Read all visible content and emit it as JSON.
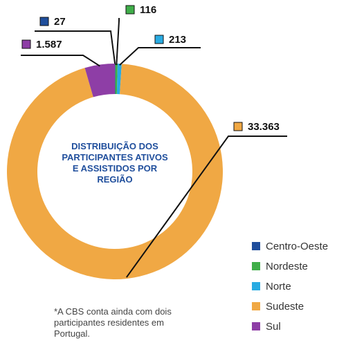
{
  "chart_data": {
    "type": "donut",
    "title": "DISTRIBUIÇÃO DOS PARTICIPANTES ATIVOS E ASSISTIDOS POR REGIÃO",
    "categories": [
      "Centro-Oeste",
      "Nordeste",
      "Norte",
      "Sudeste",
      "Sul"
    ],
    "values": [
      27,
      116,
      213,
      33363,
      1587
    ],
    "value_labels": [
      "27",
      "116",
      "213",
      "33.363",
      "1.587"
    ],
    "colors": [
      "#1f4e9c",
      "#3fae49",
      "#29abe2",
      "#f0a844",
      "#8e3ea6"
    ],
    "note": "*A CBS conta ainda com dois participantes residentes em Portugal."
  }
}
